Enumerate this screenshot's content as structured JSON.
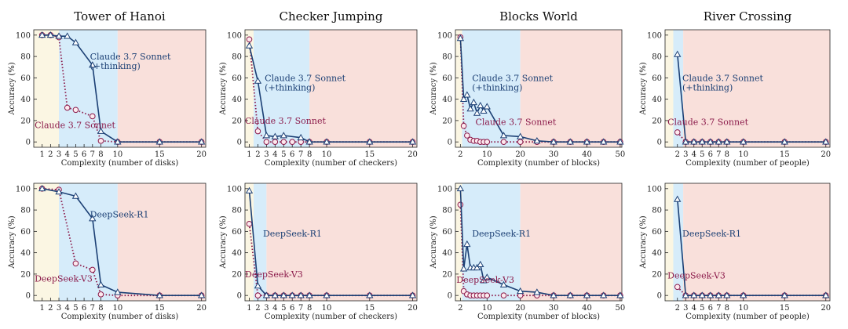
{
  "colors": {
    "thinking": "#1b3f74",
    "base": "#8b1a4a",
    "low_region": "#fbf6e3",
    "mid_region": "#d6ecfa",
    "high_region": "#f9e0db"
  },
  "chart_data": [
    {
      "type": "line",
      "title": "Tower of Hanoi",
      "xlabel": "Complexity (number of disks)",
      "ylabel": "Accuracy (%)",
      "xlim": [
        0,
        20.5
      ],
      "ylim": [
        -5,
        105
      ],
      "xticks": [
        1,
        2,
        3,
        4,
        5,
        6,
        7,
        8,
        10,
        15,
        20
      ],
      "yticks": [
        0,
        20,
        40,
        60,
        80,
        100
      ],
      "regions": [
        {
          "from": 0,
          "to": 3,
          "level": "low"
        },
        {
          "from": 3,
          "to": 10,
          "level": "mid"
        },
        {
          "from": 10,
          "to": 20.5,
          "level": "high"
        }
      ],
      "series": [
        {
          "name": "Claude 3.7 Sonnet (+thinking)",
          "style": "thinking",
          "x": [
            1,
            2,
            3,
            4,
            5,
            7,
            8,
            10,
            15,
            20
          ],
          "y": [
            100,
            100,
            99,
            99,
            93,
            72,
            10,
            0,
            0,
            0
          ]
        },
        {
          "name": "Claude 3.7 Sonnet",
          "style": "base",
          "x": [
            1,
            2,
            3,
            4,
            5,
            7,
            8,
            10,
            15,
            20
          ],
          "y": [
            100,
            100,
            98,
            32,
            30,
            24,
            1,
            0,
            0,
            0
          ]
        }
      ],
      "annotations": [
        {
          "lines": [
            "Claude 3.7 Sonnet",
            "(+thinking)"
          ],
          "style": "thinking",
          "at": [
            6.7,
            77
          ]
        },
        {
          "lines": [
            "Claude 3.7 Sonnet"
          ],
          "style": "base",
          "at": [
            0.1,
            13
          ]
        }
      ]
    },
    {
      "type": "line",
      "title": "Checker Jumping",
      "xlabel": "Complexity (number of checkers)",
      "ylabel": "Accuracy (%)",
      "xlim": [
        0.5,
        20.5
      ],
      "ylim": [
        -5,
        105
      ],
      "xticks": [
        1,
        2,
        3,
        4,
        5,
        6,
        7,
        8,
        10,
        15,
        20
      ],
      "yticks": [
        0,
        20,
        40,
        60,
        80,
        100
      ],
      "regions": [
        {
          "from": 0.5,
          "to": 1.5,
          "level": "low"
        },
        {
          "from": 1.5,
          "to": 8,
          "level": "mid"
        },
        {
          "from": 8,
          "to": 20.5,
          "level": "high"
        }
      ],
      "series": [
        {
          "name": "Claude 3.7 Sonnet (+thinking)",
          "style": "thinking",
          "x": [
            1,
            2,
            3,
            4,
            5,
            7,
            8,
            10,
            15,
            20
          ],
          "y": [
            90,
            57,
            6,
            5,
            6,
            4,
            0,
            0,
            0,
            0
          ]
        },
        {
          "name": "Claude 3.7 Sonnet",
          "style": "base",
          "x": [
            1,
            2,
            3,
            4,
            5,
            6,
            7,
            8,
            10,
            15,
            20
          ],
          "y": [
            96,
            10,
            0,
            0,
            0,
            0,
            0,
            0,
            0,
            0,
            0
          ]
        }
      ],
      "annotations": [
        {
          "lines": [
            "Claude 3.7 Sonnet",
            "(+thinking)"
          ],
          "style": "thinking",
          "at": [
            2.8,
            57
          ]
        },
        {
          "lines": [
            "Claude 3.7 Sonnet"
          ],
          "style": "base",
          "at": [
            0.5,
            17
          ]
        }
      ]
    },
    {
      "type": "line",
      "title": "Blocks World",
      "xlabel": "Complexity (number of blocks)",
      "ylabel": "Accuracy (%)",
      "xlim": [
        0.5,
        50.5
      ],
      "ylim": [
        -5,
        105
      ],
      "xticks": [
        2,
        10,
        20,
        30,
        40,
        50
      ],
      "yticks": [
        0,
        20,
        40,
        60,
        80,
        100
      ],
      "regions": [
        {
          "from": 0.5,
          "to": 2.5,
          "level": "low"
        },
        {
          "from": 2.5,
          "to": 20,
          "level": "mid"
        },
        {
          "from": 20,
          "to": 50.5,
          "level": "high"
        }
      ],
      "series": [
        {
          "name": "Claude 3.7 Sonnet (+thinking)",
          "style": "thinking",
          "x": [
            2,
            3,
            4,
            5,
            6,
            7,
            8,
            9,
            10,
            15,
            20,
            25,
            30,
            35,
            40,
            45,
            50
          ],
          "y": [
            97,
            40,
            44,
            31,
            37,
            27,
            34,
            29,
            33,
            6,
            5,
            1,
            0,
            0,
            0,
            0,
            0
          ]
        },
        {
          "name": "Claude 3.7 Sonnet",
          "style": "base",
          "x": [
            2,
            3,
            4,
            5,
            6,
            7,
            8,
            9,
            10,
            15,
            20,
            25,
            30,
            35,
            40,
            45,
            50
          ],
          "y": [
            98,
            15,
            6,
            2,
            1,
            1,
            0,
            0,
            0,
            0,
            0,
            0,
            0,
            0,
            0,
            0,
            0
          ]
        }
      ],
      "annotations": [
        {
          "lines": [
            "Claude 3.7 Sonnet",
            "(+thinking)"
          ],
          "style": "thinking",
          "at": [
            5.5,
            57
          ]
        },
        {
          "lines": [
            "Claude 3.7 Sonnet"
          ],
          "style": "base",
          "at": [
            6.5,
            16
          ]
        }
      ]
    },
    {
      "type": "line",
      "title": "River Crossing",
      "xlabel": "Complexity (number of people)",
      "ylabel": "Accuracy (%)",
      "xlim": [
        0.5,
        20.5
      ],
      "ylim": [
        -5,
        105
      ],
      "xticks": [
        2,
        3,
        4,
        5,
        6,
        7,
        8,
        10,
        15,
        20
      ],
      "yticks": [
        0,
        20,
        40,
        60,
        80,
        100
      ],
      "regions": [
        {
          "from": 0.5,
          "to": 1.5,
          "level": "low"
        },
        {
          "from": 1.5,
          "to": 2.7,
          "level": "mid"
        },
        {
          "from": 2.7,
          "to": 20.5,
          "level": "high"
        }
      ],
      "series": [
        {
          "name": "Claude 3.7 Sonnet (+thinking)",
          "style": "thinking",
          "x": [
            2,
            3,
            4,
            5,
            6,
            7,
            8,
            10,
            15,
            20
          ],
          "y": [
            82,
            0,
            0,
            0,
            0,
            0,
            0,
            0,
            0,
            0
          ]
        },
        {
          "name": "Claude 3.7 Sonnet",
          "style": "base",
          "x": [
            2,
            3,
            4,
            5,
            6,
            7,
            8,
            10,
            15,
            20
          ],
          "y": [
            9,
            0,
            0,
            0,
            0,
            0,
            0,
            0,
            0,
            0
          ]
        }
      ],
      "annotations": [
        {
          "lines": [
            "Claude 3.7 Sonnet",
            "(+thinking)"
          ],
          "style": "thinking",
          "at": [
            2.6,
            57
          ]
        },
        {
          "lines": [
            "Claude 3.7 Sonnet"
          ],
          "style": "base",
          "at": [
            0.8,
            16
          ]
        }
      ]
    },
    {
      "type": "line",
      "title": "",
      "xlabel": "Complexity (number of disks)",
      "ylabel": "Accuracy (%)",
      "xlim": [
        0,
        20.5
      ],
      "ylim": [
        -5,
        105
      ],
      "xticks": [
        1,
        2,
        3,
        4,
        5,
        6,
        7,
        8,
        10,
        15,
        20
      ],
      "yticks": [
        0,
        20,
        40,
        60,
        80,
        100
      ],
      "regions": [
        {
          "from": 0,
          "to": 3,
          "level": "low"
        },
        {
          "from": 3,
          "to": 10,
          "level": "mid"
        },
        {
          "from": 10,
          "to": 20.5,
          "level": "high"
        }
      ],
      "series": [
        {
          "name": "DeepSeek-R1",
          "style": "thinking",
          "x": [
            1,
            3,
            5,
            7,
            8,
            10,
            15,
            20
          ],
          "y": [
            100,
            97,
            93,
            72,
            10,
            3,
            0,
            0
          ]
        },
        {
          "name": "DeepSeek-V3",
          "style": "base",
          "x": [
            1,
            3,
            5,
            7,
            8,
            10,
            15,
            20
          ],
          "y": [
            100,
            99,
            30,
            24,
            1,
            0,
            0,
            0
          ]
        }
      ],
      "annotations": [
        {
          "lines": [
            "DeepSeek-R1"
          ],
          "style": "thinking",
          "at": [
            6.7,
            73
          ]
        },
        {
          "lines": [
            "DeepSeek-V3"
          ],
          "style": "base",
          "at": [
            0.1,
            13
          ]
        }
      ]
    },
    {
      "type": "line",
      "title": "",
      "xlabel": "Complexity (number of checkers)",
      "ylabel": "Accuracy (%)",
      "xlim": [
        0.5,
        20.5
      ],
      "ylim": [
        -5,
        105
      ],
      "xticks": [
        1,
        2,
        3,
        4,
        5,
        6,
        7,
        8,
        10,
        15,
        20
      ],
      "yticks": [
        0,
        20,
        40,
        60,
        80,
        100
      ],
      "regions": [
        {
          "from": 0.5,
          "to": 1.5,
          "level": "low"
        },
        {
          "from": 1.5,
          "to": 3,
          "level": "mid"
        },
        {
          "from": 3,
          "to": 20.5,
          "level": "high"
        }
      ],
      "series": [
        {
          "name": "DeepSeek-R1",
          "style": "thinking",
          "x": [
            1,
            2,
            3,
            4,
            5,
            6,
            7,
            8,
            10,
            15,
            20
          ],
          "y": [
            98,
            9,
            0,
            0,
            0,
            0,
            0,
            0,
            0,
            0,
            0
          ]
        },
        {
          "name": "DeepSeek-V3",
          "style": "base",
          "x": [
            1,
            2,
            3,
            4,
            5,
            6,
            7,
            8,
            10,
            15,
            20
          ],
          "y": [
            67,
            0,
            0,
            0,
            0,
            0,
            0,
            0,
            0,
            0,
            0
          ]
        }
      ],
      "annotations": [
        {
          "lines": [
            "DeepSeek-R1"
          ],
          "style": "thinking",
          "at": [
            2.6,
            55
          ]
        },
        {
          "lines": [
            "DeepSeek-V3"
          ],
          "style": "base",
          "at": [
            0.5,
            17
          ]
        }
      ]
    },
    {
      "type": "line",
      "title": "",
      "xlabel": "Complexity (number of blocks)",
      "ylabel": "Accuracy (%)",
      "xlim": [
        0.5,
        50.5
      ],
      "ylim": [
        -5,
        105
      ],
      "xticks": [
        2,
        10,
        20,
        30,
        40,
        50
      ],
      "yticks": [
        0,
        20,
        40,
        60,
        80,
        100
      ],
      "regions": [
        {
          "from": 0.5,
          "to": 2.5,
          "level": "low"
        },
        {
          "from": 2.5,
          "to": 20,
          "level": "mid"
        },
        {
          "from": 20,
          "to": 50.5,
          "level": "high"
        }
      ],
      "series": [
        {
          "name": "DeepSeek-R1",
          "style": "thinking",
          "x": [
            2,
            3,
            4,
            5,
            6,
            7,
            8,
            9,
            10,
            15,
            20,
            25,
            30,
            35,
            40,
            45,
            50
          ],
          "y": [
            100,
            25,
            48,
            26,
            26,
            26,
            29,
            14,
            17,
            10,
            4,
            3,
            0,
            0,
            0,
            0,
            0
          ]
        },
        {
          "name": "DeepSeek-V3",
          "style": "base",
          "x": [
            2,
            3,
            4,
            5,
            6,
            7,
            8,
            9,
            10,
            15,
            20,
            25,
            30,
            35,
            40,
            45,
            50
          ],
          "y": [
            85,
            4,
            1,
            0,
            0,
            0,
            0,
            0,
            0,
            0,
            0,
            0,
            0,
            0,
            0,
            0,
            0
          ]
        }
      ],
      "annotations": [
        {
          "lines": [
            "DeepSeek-R1"
          ],
          "style": "thinking",
          "at": [
            5.5,
            55
          ]
        },
        {
          "lines": [
            "DeepSeek-V3"
          ],
          "style": "base",
          "at": [
            0.8,
            12
          ]
        }
      ]
    },
    {
      "type": "line",
      "title": "",
      "xlabel": "Complexity (number of people)",
      "ylabel": "Accuracy (%)",
      "xlim": [
        0.5,
        20.5
      ],
      "ylim": [
        -5,
        105
      ],
      "xticks": [
        2,
        3,
        4,
        5,
        6,
        7,
        8,
        10,
        15,
        20
      ],
      "yticks": [
        0,
        20,
        40,
        60,
        80,
        100
      ],
      "regions": [
        {
          "from": 0.5,
          "to": 1.5,
          "level": "low"
        },
        {
          "from": 1.5,
          "to": 2.7,
          "level": "mid"
        },
        {
          "from": 2.7,
          "to": 20.5,
          "level": "high"
        }
      ],
      "series": [
        {
          "name": "DeepSeek-R1",
          "style": "thinking",
          "x": [
            2,
            3,
            4,
            5,
            6,
            7,
            8,
            10,
            15,
            20
          ],
          "y": [
            90,
            0,
            0,
            0,
            0,
            0,
            0,
            0,
            0,
            0
          ]
        },
        {
          "name": "DeepSeek-V3",
          "style": "base",
          "x": [
            2,
            3,
            4,
            5,
            6,
            7,
            8,
            10,
            15,
            20
          ],
          "y": [
            8,
            0,
            0,
            0,
            0,
            0,
            0,
            0,
            0,
            0
          ]
        }
      ],
      "annotations": [
        {
          "lines": [
            "DeepSeek-R1"
          ],
          "style": "thinking",
          "at": [
            2.6,
            55
          ]
        },
        {
          "lines": [
            "DeepSeek-V3"
          ],
          "style": "base",
          "at": [
            0.8,
            16
          ]
        }
      ]
    }
  ]
}
